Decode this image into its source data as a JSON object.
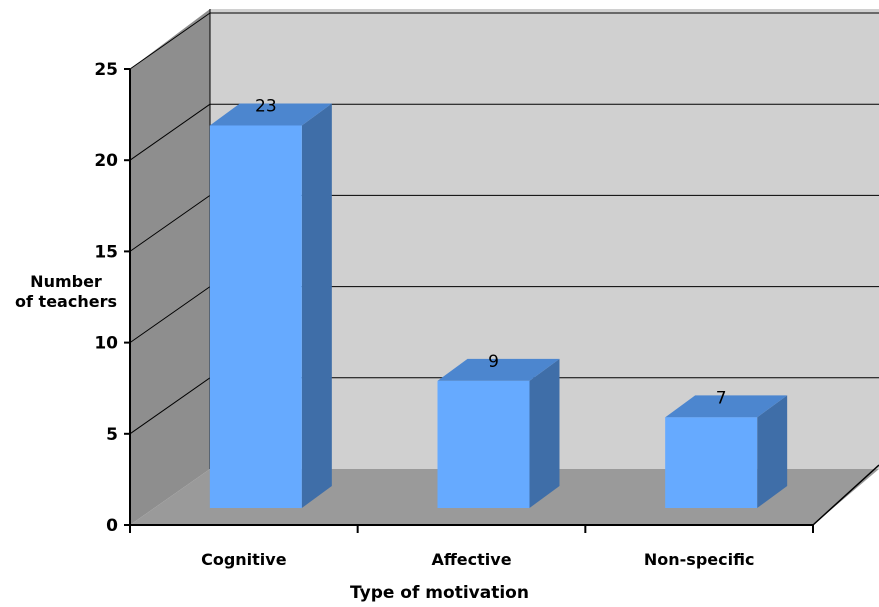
{
  "chart_data": {
    "type": "bar",
    "style": "3d-column",
    "categories": [
      "Cognitive",
      "Affective",
      "Non-specific"
    ],
    "values": [
      23,
      9,
      7
    ],
    "data_labels": [
      "23",
      "9",
      "7"
    ],
    "ylim": [
      0,
      25
    ],
    "yticks": [
      "0",
      "5",
      "10",
      "15",
      "20",
      "25"
    ],
    "xlabel": "Type of motivation",
    "ylabel": [
      "Number",
      "of teachers"
    ],
    "grid": true,
    "legend": "none",
    "colors": {
      "bar_front": "#66aaff",
      "bar_side": "#3f6ea8",
      "bar_top": "#4c86cf",
      "back_wall": "#d0d0d0",
      "side_wall": "#8e8e8e",
      "floor": "#9a9a9a"
    }
  }
}
